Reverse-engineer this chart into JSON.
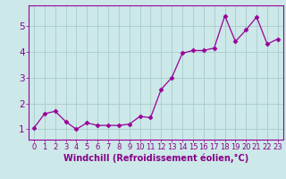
{
  "x": [
    0,
    1,
    2,
    3,
    4,
    5,
    6,
    7,
    8,
    9,
    10,
    11,
    12,
    13,
    14,
    15,
    16,
    17,
    18,
    19,
    20,
    21,
    22,
    23
  ],
  "y": [
    1.05,
    1.6,
    1.7,
    1.3,
    1.0,
    1.25,
    1.15,
    1.15,
    1.15,
    1.2,
    1.5,
    1.45,
    2.55,
    3.0,
    3.95,
    4.05,
    4.05,
    4.15,
    5.4,
    4.4,
    4.85,
    5.35,
    4.3,
    4.5
  ],
  "line_color": "#990099",
  "marker": "D",
  "markersize": 2.5,
  "xlabel": "Windchill (Refroidissement éolien,°C)",
  "xlabel_color": "#880088",
  "ylim": [
    0.6,
    5.8
  ],
  "xlim": [
    -0.5,
    23.5
  ],
  "yticks": [
    1,
    2,
    3,
    4,
    5
  ],
  "xticks": [
    0,
    1,
    2,
    3,
    4,
    5,
    6,
    7,
    8,
    9,
    10,
    11,
    12,
    13,
    14,
    15,
    16,
    17,
    18,
    19,
    20,
    21,
    22,
    23
  ],
  "bg_color": "#cce8e8",
  "grid_color": "#aacccc",
  "tick_color": "#880088",
  "xlabel_fontsize": 7,
  "tick_fontsize": 6,
  "ytick_fontsize": 7.5
}
